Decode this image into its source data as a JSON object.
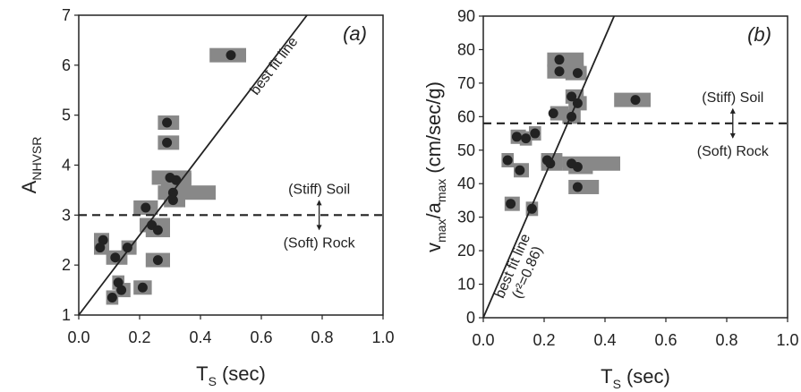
{
  "chart_data": [
    {
      "type": "scatter",
      "panel_label": "(a)",
      "y_label_parts": [
        {
          "text": "A"
        },
        {
          "text": "NHVSR",
          "sub": true
        }
      ],
      "x_label_parts": [
        {
          "text": "T"
        },
        {
          "text": "S",
          "sub": true
        },
        {
          "text": "(sec)"
        }
      ],
      "xlim": [
        0,
        1
      ],
      "xticks": [
        {
          "value": 0,
          "label": "0.0"
        },
        0.2,
        0.4,
        0.6,
        0.8,
        {
          "value": 1,
          "label": "1.0"
        }
      ],
      "ylim": [
        1,
        7
      ],
      "yticks": [
        1,
        2,
        3,
        4,
        5,
        6,
        7
      ],
      "x": [
        0.5,
        0.29,
        0.29,
        0.3,
        0.32,
        0.31,
        0.31,
        0.22,
        0.24,
        0.26,
        0.08,
        0.07,
        0.16,
        0.12,
        0.26,
        0.13,
        0.14,
        0.21,
        0.11
      ],
      "values": [
        6.2,
        4.85,
        4.45,
        3.75,
        3.7,
        3.45,
        3.3,
        3.15,
        2.8,
        2.7,
        2.5,
        2.35,
        2.35,
        2.15,
        2.1,
        1.65,
        1.5,
        1.55,
        1.35
      ],
      "x_low": [
        0.43,
        0.26,
        0.26,
        0.24,
        0.27,
        0.26,
        0.28,
        0.18,
        0.2,
        0.22,
        0.05,
        0.05,
        0.14,
        0.09,
        0.22,
        0.11,
        0.12,
        0.18,
        0.09
      ],
      "x_high": [
        0.55,
        0.33,
        0.33,
        0.37,
        0.37,
        0.45,
        0.35,
        0.26,
        0.3,
        0.3,
        0.1,
        0.1,
        0.19,
        0.16,
        0.3,
        0.15,
        0.17,
        0.24,
        0.13
      ],
      "color": "#888888",
      "point_color": "#222222",
      "fit_line": {
        "label": "best fit line",
        "x": [
          0,
          0.75
        ],
        "y": [
          1,
          7
        ]
      },
      "threshold": {
        "value": 3,
        "above_label": "(Stiff) Soil",
        "below_label": "(Soft) Rock"
      }
    },
    {
      "type": "scatter",
      "panel_label": "(b)",
      "y_label_parts": [
        {
          "text": "v"
        },
        {
          "text": "max",
          "sub": true
        },
        {
          "text": "/a"
        },
        {
          "text": "max",
          "sub": true
        },
        {
          "text": "(cm/sec/g)"
        }
      ],
      "x_label_parts": [
        {
          "text": "T"
        },
        {
          "text": "S",
          "sub": true
        },
        {
          "text": "(sec)"
        }
      ],
      "xlim": [
        0,
        1
      ],
      "xticks": [
        {
          "value": 0,
          "label": "0.0"
        },
        0.2,
        0.4,
        0.6,
        0.8,
        {
          "value": 1,
          "label": "1.0"
        }
      ],
      "ylim": [
        0,
        90
      ],
      "yticks": [
        0,
        10,
        20,
        30,
        40,
        50,
        60,
        70,
        80,
        90
      ],
      "x": [
        0.5,
        0.25,
        0.25,
        0.31,
        0.29,
        0.31,
        0.23,
        0.29,
        0.11,
        0.14,
        0.17,
        0.08,
        0.12,
        0.21,
        0.22,
        0.29,
        0.31,
        0.31,
        0.09,
        0.16
      ],
      "values": [
        65,
        77,
        73.5,
        73,
        66,
        64,
        61,
        60,
        54,
        53.5,
        55,
        47,
        44,
        47,
        46,
        46,
        45,
        39,
        34,
        32.5
      ],
      "x_low": [
        0.43,
        0.21,
        0.21,
        0.27,
        0.27,
        0.28,
        0.22,
        0.26,
        0.09,
        0.12,
        0.15,
        0.06,
        0.1,
        0.19,
        0.19,
        0.26,
        0.28,
        0.28,
        0.07,
        0.14
      ],
      "x_high": [
        0.55,
        0.33,
        0.33,
        0.34,
        0.33,
        0.34,
        0.28,
        0.32,
        0.14,
        0.16,
        0.19,
        0.1,
        0.15,
        0.26,
        0.26,
        0.45,
        0.36,
        0.38,
        0.12,
        0.18
      ],
      "color": "#888888",
      "point_color": "#222222",
      "fit_line": {
        "label": "best fit line",
        "note": "(r²=0.86)",
        "x": [
          0,
          0.43
        ],
        "y": [
          0,
          90
        ]
      },
      "threshold": {
        "value": 58,
        "above_label": "(Stiff) Soil",
        "below_label": "(Soft) Rock"
      }
    }
  ]
}
